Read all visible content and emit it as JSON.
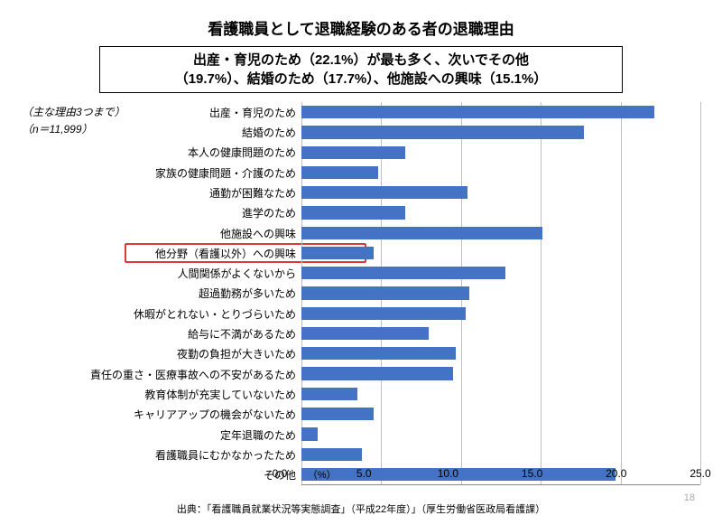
{
  "title": "看護職員として退職経験のある者の退職理由",
  "subtitle_line1": "出産・育児のため（22.1%）が最も多く、次いでその他",
  "subtitle_line2": "（19.7%）、結婚のため（17.7%）、他施設への興味（15.1%）",
  "note_prefix": "（主な理由3つまで）",
  "note_n": "（n＝11,999）",
  "source": "出典：「看護職員就業状況等実態調査」（平成22年度）」（厚生労働省医政局看護課）",
  "page_number": "18",
  "style": {
    "title_fontsize": 17,
    "subtitle_fontsize": 15,
    "label_fontsize": 12,
    "note_fontsize": 12,
    "tick_fontsize": 12,
    "source_fontsize": 11,
    "bar_color": "#4472c4",
    "grid_color": "#bfbfbf",
    "highlight_border_color": "#d93a3a",
    "background_color": "#ffffff"
  },
  "chart": {
    "type": "horizontal-bar",
    "x_unit": "（%）",
    "xlim_min": 0.0,
    "xlim_max": 25.0,
    "xtick_step": 5.0,
    "xticks": [
      "0.0",
      "5.0",
      "10.0",
      "15.0",
      "20.0",
      "25.0"
    ],
    "highlight_index": 7,
    "items": [
      {
        "label": "出産・育児のため",
        "value": 22.1
      },
      {
        "label": "結婚のため",
        "value": 17.7
      },
      {
        "label": "本人の健康問題のため",
        "value": 6.5
      },
      {
        "label": "家族の健康問題・介護のため",
        "value": 4.8
      },
      {
        "label": "通勤が困難なため",
        "value": 10.4
      },
      {
        "label": "進学のため",
        "value": 6.5
      },
      {
        "label": "他施設への興味",
        "value": 15.1
      },
      {
        "label": "他分野（看護以外）への興味",
        "value": 4.5
      },
      {
        "label": "人間関係がよくないから",
        "value": 12.8
      },
      {
        "label": "超過勤務が多いため",
        "value": 10.5
      },
      {
        "label": "休暇がとれない・とりづらいため",
        "value": 10.3
      },
      {
        "label": "給与に不満があるため",
        "value": 8.0
      },
      {
        "label": "夜勤の負担が大きいため",
        "value": 9.7
      },
      {
        "label": "責任の重さ・医療事故への不安があるため",
        "value": 9.5
      },
      {
        "label": "教育体制が充実していないため",
        "value": 3.5
      },
      {
        "label": "キャリアアップの機会がないため",
        "value": 4.5
      },
      {
        "label": "定年退職のため",
        "value": 1.0
      },
      {
        "label": "看護職員にむかなかったため",
        "value": 3.8
      },
      {
        "label": "その他",
        "value": 19.7
      }
    ]
  }
}
